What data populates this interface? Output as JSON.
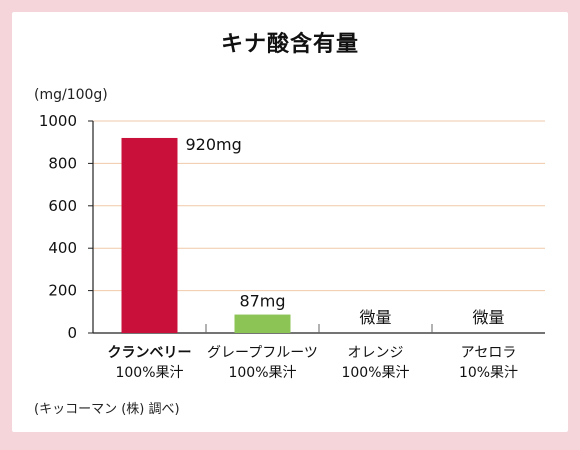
{
  "title": "キナ酸含有量",
  "unit_label": "(mg/100g)",
  "source_note": "(キッコーマン (株) 調べ)",
  "colors": {
    "background": "#f5d4da",
    "highlight_bar": "#c8103a",
    "other_bar": "#8cc456",
    "highlight_text": "#c8103a",
    "grid": "#f0c9a8"
  },
  "chart_data": {
    "type": "bar",
    "title": "キナ酸含有量",
    "ylabel": "(mg/100g)",
    "xlabel": "",
    "ylim": [
      0,
      1000
    ],
    "yticks": [
      0,
      200,
      400,
      600,
      800,
      1000
    ],
    "grid": true,
    "categories": [
      {
        "line1": "クランベリー",
        "line2": "100%果汁",
        "highlight": true
      },
      {
        "line1": "グレープフルーツ",
        "line2": "100%果汁",
        "highlight": false
      },
      {
        "line1": "オレンジ",
        "line2": "100%果汁",
        "highlight": false
      },
      {
        "line1": "アセロラ",
        "line2": "10%果汁",
        "highlight": false
      }
    ],
    "values": [
      920,
      87,
      null,
      null
    ],
    "value_labels": [
      "920mg",
      "87mg",
      "微量",
      "微量"
    ]
  }
}
